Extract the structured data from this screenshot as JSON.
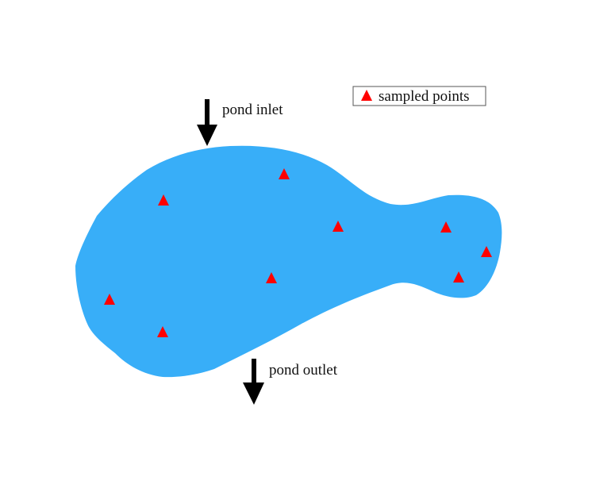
{
  "labels": {
    "inlet": "pond inlet",
    "outlet": "pond outlet"
  },
  "legend": {
    "label": "sampled points",
    "marker_icon": "red-triangle-icon"
  },
  "colors": {
    "pond_fill": "#38aef8",
    "marker": "#ff0000",
    "arrow": "#000000",
    "legend_border": "#555555"
  },
  "sampled_points_count": 10
}
